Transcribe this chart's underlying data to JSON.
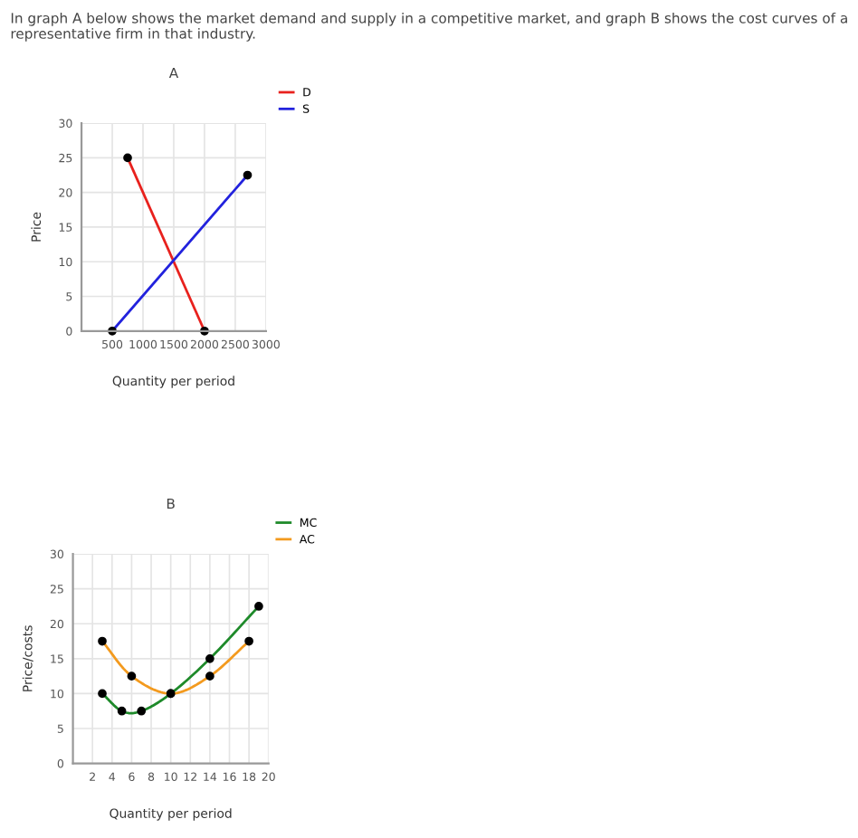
{
  "chart_data": [
    {
      "type": "line",
      "title": "A",
      "xlabel": "Quantity per period",
      "ylabel": "Price",
      "annotations": [
        "In graph A below shows the market demand and supply in a competitive market, and graph B shows the cost curves of a representative firm in that industry."
      ],
      "series": [
        {
          "name": "D",
          "color": "#e8211d",
          "x": [
            750,
            2000
          ],
          "values": [
            25,
            0
          ]
        },
        {
          "name": "S",
          "color": "#2222dd",
          "x": [
            500,
            2700
          ],
          "values": [
            0,
            22.5
          ]
        }
      ],
      "xlim": [
        0,
        3000
      ],
      "xticks": [
        500,
        1000,
        1500,
        2000,
        2500,
        3000
      ],
      "ylim": [
        0,
        30
      ],
      "yticks": [
        0,
        5,
        10,
        15,
        20,
        25,
        30
      ],
      "grid": true,
      "legend": "top right",
      "marker": "circle"
    },
    {
      "type": "line",
      "title": "B",
      "xlabel": "Quantity per period",
      "ylabel": "Price/costs",
      "series": [
        {
          "name": "MC",
          "color": "#1e8a2a",
          "x": [
            3,
            5,
            7,
            10,
            14,
            19
          ],
          "values": [
            10,
            7.5,
            7.5,
            10,
            15,
            22.5
          ]
        },
        {
          "name": "AC",
          "color": "#f39a1e",
          "x": [
            3,
            6,
            10,
            14,
            18
          ],
          "values": [
            17.5,
            12.5,
            10,
            12.5,
            17.5
          ]
        }
      ],
      "xlim": [
        0,
        20
      ],
      "xticks": [
        2,
        4,
        6,
        8,
        10,
        12,
        14,
        16,
        18,
        20
      ],
      "ylim": [
        0,
        30
      ],
      "yticks": [
        0,
        5,
        10,
        15,
        20,
        25,
        30
      ],
      "grid": true,
      "legend": "top right",
      "marker": "circle"
    }
  ]
}
